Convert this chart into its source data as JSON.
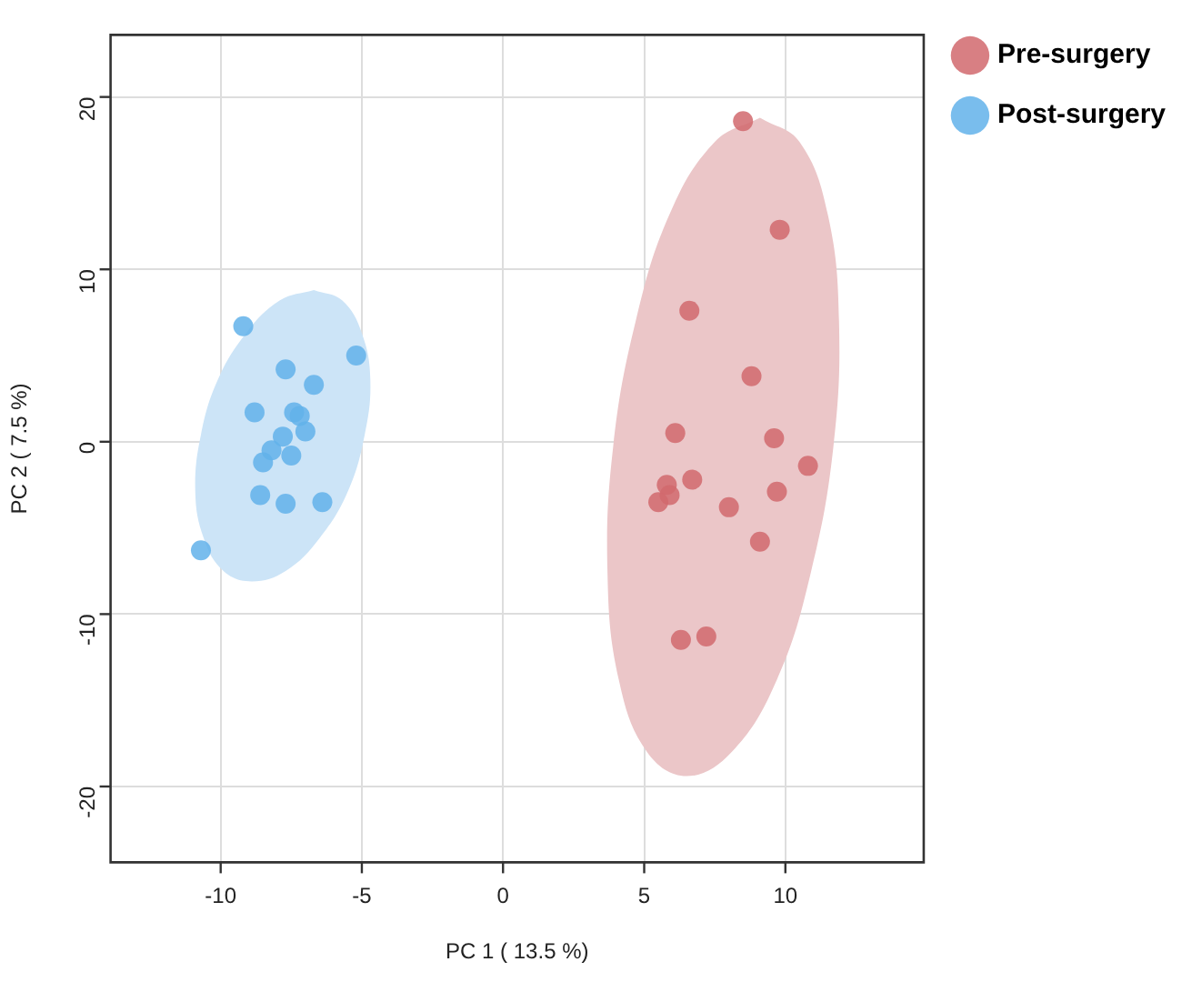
{
  "chart_data": {
    "type": "scatter",
    "xlabel": "PC 1 ( 13.5 %)",
    "ylabel": "PC 2 ( 7.5 %)",
    "xlim": [
      -13.9,
      14.9
    ],
    "ylim": [
      -24.4,
      23.6
    ],
    "xticks": [
      -10,
      -5,
      0,
      5,
      10
    ],
    "yticks": [
      -20,
      -10,
      0,
      10,
      20
    ],
    "grid": true,
    "legend": "top right",
    "marker": "circle",
    "series": [
      {
        "type": "area",
        "marker": "none",
        "color": "#ebc6c8",
        "x": [
          9.1,
          10.5,
          11.5,
          11.9,
          11.7,
          10.9,
          9.7,
          8.1,
          6.5,
          5.1,
          4.1,
          3.7,
          3.9,
          4.7,
          5.9,
          7.5
        ],
        "values": [
          18.8,
          17.4,
          13.2,
          7.0,
          -0.3,
          -7.6,
          -13.8,
          -18.0,
          -19.4,
          -18.0,
          -13.8,
          -7.6,
          -0.3,
          7.0,
          13.2,
          17.4
        ]
      },
      {
        "type": "area",
        "marker": "none",
        "color": "#cce4f7",
        "x": [
          -6.7,
          -5.7,
          -5.0,
          -4.7,
          -4.9,
          -5.5,
          -6.5,
          -7.7,
          -8.9,
          -9.9,
          -10.6,
          -10.9,
          -10.7,
          -10.1,
          -9.1,
          -7.9
        ],
        "values": [
          8.8,
          8.2,
          6.3,
          3.6,
          0.4,
          -2.9,
          -5.6,
          -7.5,
          -8.1,
          -7.5,
          -5.6,
          -2.9,
          0.4,
          3.6,
          6.3,
          8.2
        ]
      },
      {
        "name": "Pre-surgery",
        "color": "#d1686d",
        "x": [
          8.5,
          9.8,
          6.6,
          8.8,
          6.1,
          9.6,
          10.8,
          5.8,
          5.5,
          5.9,
          6.7,
          9.7,
          8.0,
          9.1,
          6.3,
          7.2
        ],
        "values": [
          18.6,
          12.3,
          7.6,
          3.8,
          0.5,
          0.2,
          -1.4,
          -2.5,
          -3.5,
          -3.1,
          -2.2,
          -2.9,
          -3.8,
          -5.8,
          -11.5,
          -11.3
        ]
      },
      {
        "name": "Post-surgery",
        "color": "#62b2ea",
        "x": [
          -9.2,
          -5.2,
          -7.7,
          -6.7,
          -8.8,
          -7.4,
          -7.2,
          -7.0,
          -7.8,
          -8.2,
          -7.5,
          -8.5,
          -8.6,
          -7.7,
          -6.4,
          -10.7
        ],
        "values": [
          6.7,
          5.0,
          4.2,
          3.3,
          1.7,
          1.7,
          1.5,
          0.6,
          0.3,
          -0.5,
          -0.8,
          -1.2,
          -3.1,
          -3.6,
          -3.5,
          -6.3
        ]
      }
    ]
  }
}
